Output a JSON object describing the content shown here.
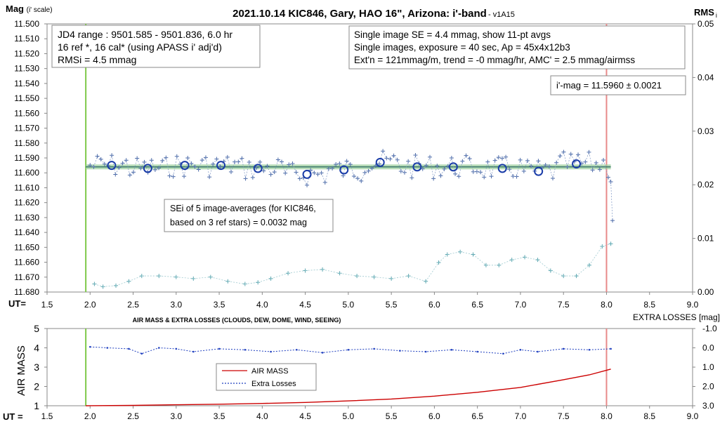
{
  "chart_data": [
    {
      "type": "scatter",
      "title": "2021.10.14 KIC846, Gary, HAO 16\", Arizona: i'-band",
      "version": "- v1A15",
      "ylabel": "Mag (i' scale)",
      "ylabel_main": "Mag",
      "ylabel_unit": "(i' scale)",
      "y2label": "RMS",
      "y2label_sub": "i",
      "xlabel": "UT=",
      "xlim": [
        1.5,
        9.0
      ],
      "ylim": [
        11.68,
        11.5
      ],
      "y2lim": [
        0.0,
        0.05
      ],
      "x_ticks": [
        "1.5",
        "2.0",
        "2.5",
        "3.0",
        "3.5",
        "4.0",
        "4.5",
        "5.0",
        "5.5",
        "6.0",
        "6.5",
        "7.0",
        "7.5",
        "8.0",
        "8.5",
        "9.0"
      ],
      "y_ticks": [
        "11.500",
        "11.510",
        "11.520",
        "11.530",
        "11.540",
        "11.550",
        "11.560",
        "11.570",
        "11.580",
        "11.590",
        "11.600",
        "11.610",
        "11.620",
        "11.630",
        "11.640",
        "11.650",
        "11.660",
        "11.670",
        "11.680"
      ],
      "y2_ticks": [
        "0.05",
        "0.04",
        "0.03",
        "0.02",
        "0.01",
        "0.00"
      ],
      "vlines": [
        {
          "x": 1.95,
          "color": "#7fc94a"
        },
        {
          "x": 8.0,
          "color": "#e88a8a"
        }
      ],
      "mean_mag": 11.596,
      "averages": {
        "x": [
          2.25,
          2.67,
          3.1,
          3.52,
          3.95,
          4.52,
          4.95,
          5.37,
          5.8,
          6.22,
          6.79,
          7.21,
          7.65
        ],
        "y": [
          11.595,
          11.597,
          11.595,
          11.595,
          11.597,
          11.601,
          11.598,
          11.593,
          11.596,
          11.596,
          11.597,
          11.599,
          11.594
        ]
      },
      "rms_series": {
        "x": [
          2.05,
          2.15,
          2.3,
          2.45,
          2.6,
          2.8,
          3.0,
          3.2,
          3.4,
          3.6,
          3.8,
          3.95,
          4.1,
          4.3,
          4.5,
          4.7,
          4.9,
          5.1,
          5.3,
          5.5,
          5.7,
          5.9,
          6.05,
          6.15,
          6.3,
          6.45,
          6.6,
          6.75,
          6.9,
          7.05,
          7.2,
          7.35,
          7.5,
          7.65,
          7.8,
          7.95,
          8.05
        ],
        "y": [
          0.0015,
          0.001,
          0.0012,
          0.002,
          0.003,
          0.003,
          0.0028,
          0.0025,
          0.0028,
          0.002,
          0.0015,
          0.0018,
          0.0025,
          0.0035,
          0.004,
          0.0042,
          0.0035,
          0.003,
          0.0028,
          0.0025,
          0.003,
          0.002,
          0.0055,
          0.007,
          0.0075,
          0.007,
          0.005,
          0.005,
          0.006,
          0.0065,
          0.006,
          0.004,
          0.003,
          0.003,
          0.005,
          0.0085,
          0.009
        ]
      },
      "annotations": {
        "box1": [
          "JD4 range : 9501.585 - 9501.836, 6.0  hr",
          "16 ref *, 16 cal* (using APASS i' adj'd)",
          "RMSi = 4.5 mmag"
        ],
        "box2": [
          "Single image SE = 4.4 mmag, show 11-pt avgs",
          "Single images, exposure = 40 sec, Ap = 45x4x12b3",
          "Ext'n = 121mmag/m, trend = -0 mmag/hr, AMC' = 2.5 mmag/airmss"
        ],
        "box3": "i'-mag = 11.5960 ± 0.0021",
        "box4": [
          "SEi of 5 image-averages (for KIC846,",
          "based on 3 ref stars) = 0.0032 mag"
        ]
      }
    },
    {
      "type": "line",
      "title": "AIR MASS & EXTRA LOSSES (CLOUDS, DEW, DOME, WIND, SEEING)",
      "ylabel": "AIR MASS",
      "y2label": "EXTRA LOSSES [mag]",
      "xlabel": "UT =",
      "xlim": [
        1.5,
        9.0
      ],
      "ylim": [
        1,
        5
      ],
      "y2lim": [
        -1.0,
        3.0
      ],
      "x_ticks": [
        "1.5",
        "2.0",
        "2.5",
        "3.0",
        "3.5",
        "4.0",
        "4.5",
        "5.0",
        "5.5",
        "6.0",
        "6.5",
        "7.0",
        "7.5",
        "8.0",
        "8.5",
        "9.0"
      ],
      "y_ticks": [
        "5",
        "4",
        "3",
        "2",
        "1"
      ],
      "y2_ticks": [
        "-1.0",
        "0.0",
        "1.0",
        "2.0",
        "3.0"
      ],
      "legend": [
        "AIR MASS",
        "Extra Losses"
      ],
      "series": [
        {
          "name": "AIR MASS",
          "color": "#cc0000",
          "x": [
            1.95,
            2.5,
            3.0,
            3.5,
            4.0,
            4.5,
            5.0,
            5.5,
            6.0,
            6.5,
            7.0,
            7.5,
            7.8,
            8.05
          ],
          "y": [
            1.0,
            1.02,
            1.05,
            1.08,
            1.12,
            1.17,
            1.25,
            1.35,
            1.5,
            1.7,
            1.95,
            2.35,
            2.6,
            2.9
          ]
        },
        {
          "name": "Extra Losses",
          "color": "#1f3fbf",
          "x": [
            2.0,
            2.2,
            2.45,
            2.6,
            2.8,
            3.0,
            3.2,
            3.5,
            3.8,
            4.1,
            4.4,
            4.7,
            5.0,
            5.3,
            5.6,
            5.9,
            6.2,
            6.5,
            6.8,
            7.0,
            7.2,
            7.5,
            7.8,
            8.05
          ],
          "y": [
            -0.05,
            0.0,
            0.05,
            0.3,
            0.0,
            0.05,
            0.2,
            0.05,
            0.1,
            0.2,
            0.1,
            0.25,
            0.1,
            0.05,
            0.15,
            0.2,
            0.1,
            0.2,
            0.3,
            0.1,
            0.2,
            0.05,
            0.1,
            0.05
          ]
        }
      ],
      "vlines": [
        {
          "x": 1.95,
          "color": "#7fc94a"
        },
        {
          "x": 8.0,
          "color": "#e88a8a"
        }
      ]
    }
  ]
}
